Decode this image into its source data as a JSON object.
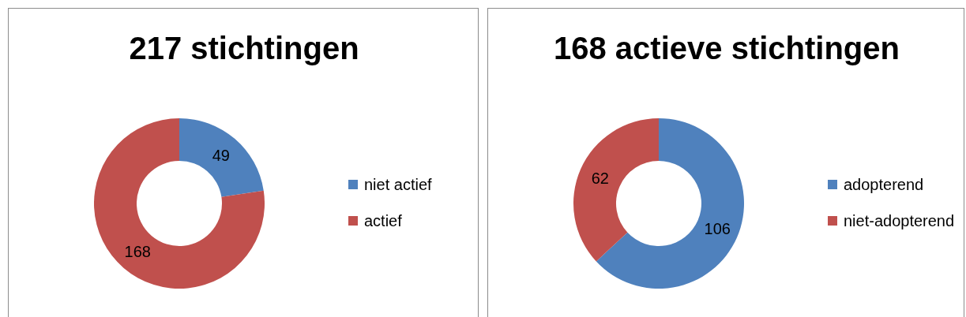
{
  "chart_data": [
    {
      "type": "donut",
      "title": "217 stichtingen",
      "categories": [
        "niet actief",
        "actief"
      ],
      "values": [
        49,
        168
      ],
      "colors": [
        "#4f81bd",
        "#c0504d"
      ],
      "data_labels": true,
      "legend": "right"
    },
    {
      "type": "donut",
      "title": "168 actieve stichtingen",
      "categories": [
        "adopterend",
        "niet-adopterend"
      ],
      "values": [
        106,
        62
      ],
      "colors": [
        "#4f81bd",
        "#c0504d"
      ],
      "data_labels": true,
      "legend": "right"
    }
  ]
}
